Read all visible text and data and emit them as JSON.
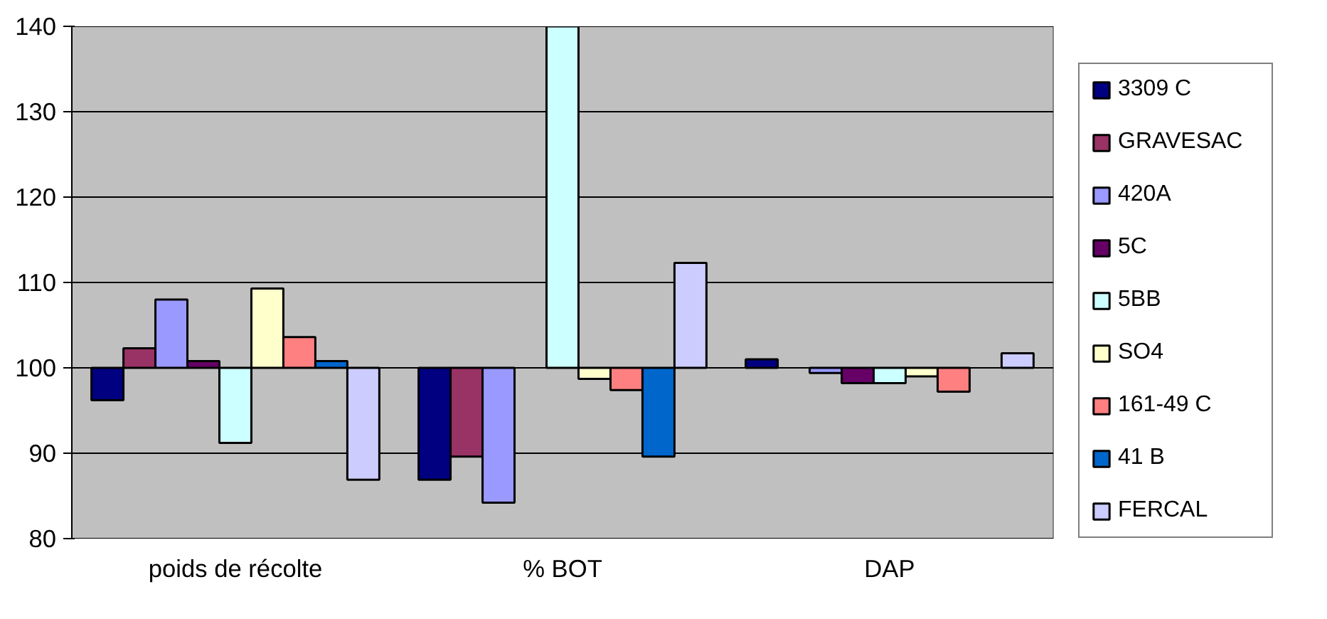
{
  "chart_data": {
    "type": "bar",
    "categories": [
      "poids de récolte",
      "% BOT",
      "DAP"
    ],
    "series": [
      {
        "name": "3309 C",
        "color": "#000080",
        "base": [
          100,
          100,
          100
        ],
        "values": [
          -3.8,
          -13.1,
          1.0
        ]
      },
      {
        "name": "GRAVESAC",
        "color": "#993366",
        "base": [
          100,
          100,
          null
        ],
        "values": [
          2.3,
          -10.4,
          null
        ]
      },
      {
        "name": "420A",
        "color": "#9999ff",
        "base": [
          100,
          100,
          100
        ],
        "values": [
          8.0,
          -15.8,
          -0.6
        ]
      },
      {
        "name": "5C",
        "color": "#660066",
        "base": [
          100,
          null,
          100
        ],
        "values": [
          0.8,
          null,
          -1.8
        ]
      },
      {
        "name": "5BB",
        "color": "#ccffff",
        "base": [
          100,
          100,
          100
        ],
        "values": [
          -8.8,
          40.0,
          -1.8
        ]
      },
      {
        "name": "SO4",
        "color": "#ffffcc",
        "base": [
          100,
          100,
          100
        ],
        "values": [
          9.3,
          -1.3,
          -1.0
        ]
      },
      {
        "name": "161-49 C",
        "color": "#ff8080",
        "base": [
          100,
          100,
          100
        ],
        "values": [
          3.6,
          -2.6,
          -2.8
        ]
      },
      {
        "name": "41 B",
        "color": "#0066cc",
        "base": [
          100,
          100,
          null
        ],
        "values": [
          0.8,
          -10.4,
          null
        ]
      },
      {
        "name": "FERCAL",
        "color": "#ccccff",
        "base": [
          100,
          100,
          100
        ],
        "values": [
          -13.1,
          12.3,
          1.7
        ]
      }
    ],
    "ylim": [
      80,
      140
    ],
    "yticks": [
      80,
      90,
      100,
      110,
      120,
      130,
      140
    ],
    "grid": "y",
    "legend": "right"
  }
}
